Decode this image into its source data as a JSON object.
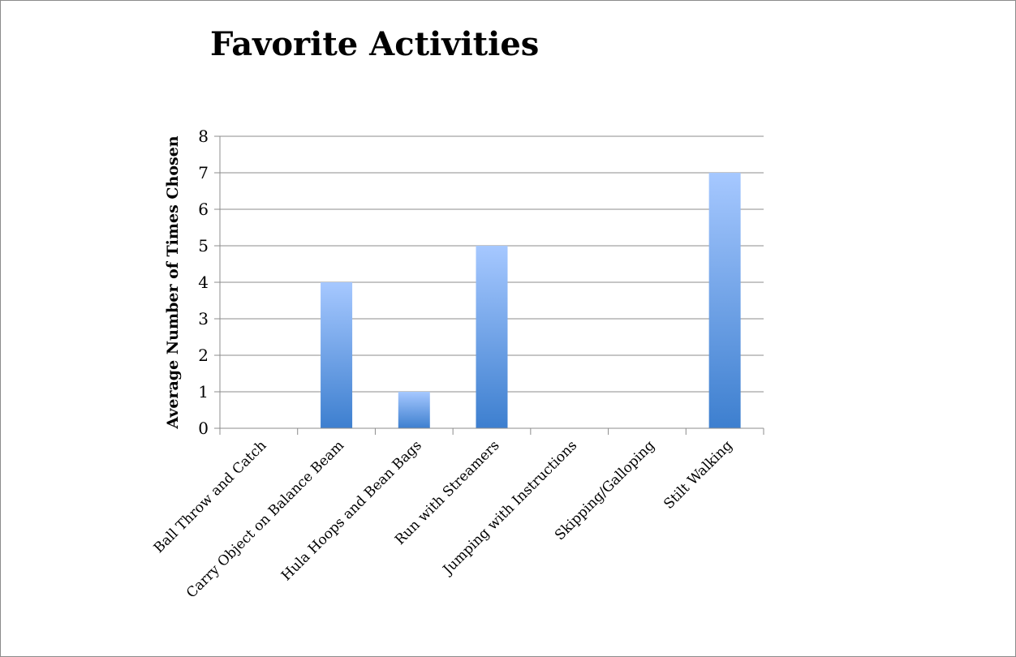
{
  "chart_data": {
    "type": "bar",
    "title": "Favorite Activities",
    "xlabel": "",
    "ylabel": "Average Number of Times Chosen",
    "categories": [
      "Ball Throw and Catch",
      "Carry Object on Balance Beam",
      "Hula Hoops and Bean Bags",
      "Run with Streamers",
      "Jumping with Instructions",
      "Skipping/Galloping",
      "Stilt Walking"
    ],
    "values": [
      0,
      4,
      1,
      5,
      0,
      0,
      7
    ],
    "ylim": [
      0,
      8
    ],
    "yticks": [
      0,
      1,
      2,
      3,
      4,
      5,
      6,
      7,
      8
    ],
    "grid": true,
    "legend": "none",
    "colors": {
      "bar_top": "#a6c8ff",
      "bar_bottom": "#3d7fcf",
      "grid": "#8c8c8c"
    }
  }
}
